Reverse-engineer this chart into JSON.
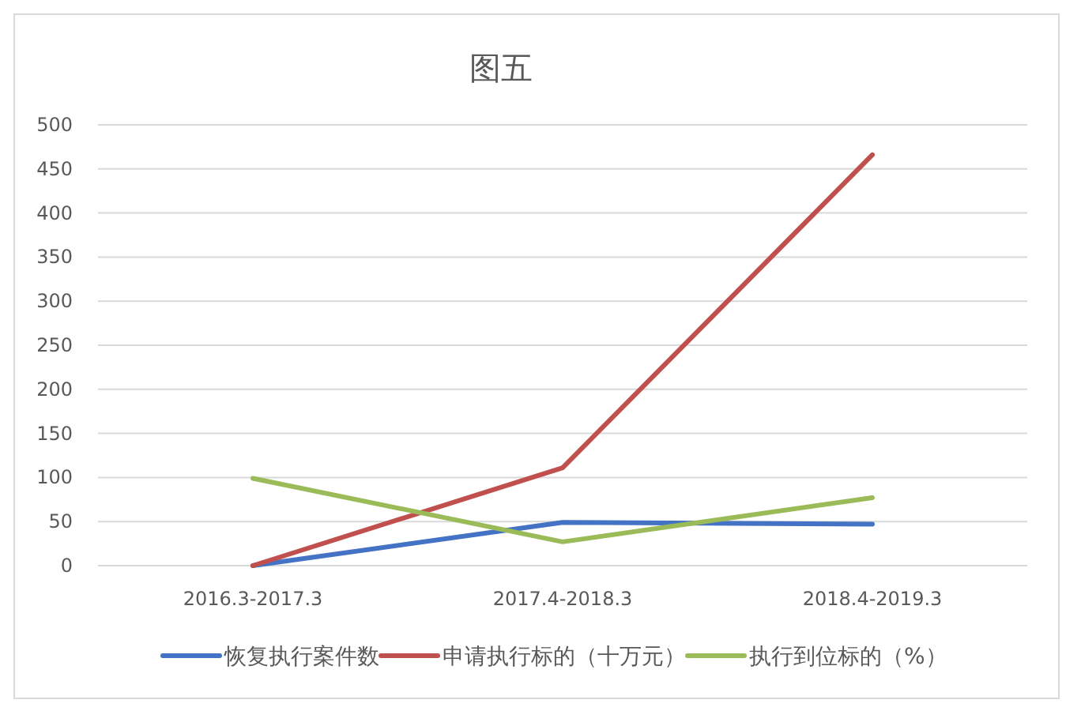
{
  "chart_data": {
    "type": "line",
    "title": "图五",
    "categories": [
      "2016.3-2017.3",
      "2017.4-2018.3",
      "2018.4-2019.3"
    ],
    "series": [
      {
        "name": "恢复执行案件数",
        "color": "#4472c4",
        "values": [
          0,
          49,
          47
        ]
      },
      {
        "name": "申请执行标的（十万元）",
        "color": "#c0504d",
        "values": [
          0,
          111,
          466
        ]
      },
      {
        "name": "执行到位标的（%）",
        "color": "#9bbb59",
        "values": [
          99,
          27,
          77
        ]
      }
    ],
    "ylim": [
      0,
      500
    ],
    "yticks": [
      0,
      50,
      100,
      150,
      200,
      250,
      300,
      350,
      400,
      450,
      500
    ],
    "grid": "y",
    "legend": "bottom",
    "marker": "none",
    "line_style": "solid"
  }
}
